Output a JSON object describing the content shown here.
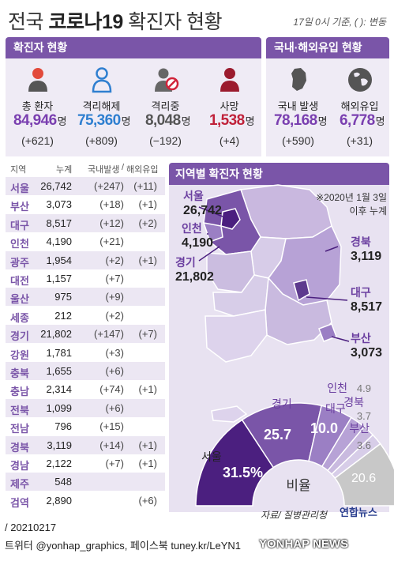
{
  "header": {
    "title_pre": "전국 ",
    "title_bold": "코로나19",
    "title_post": " 확진자 현황",
    "basis": "17일 0시 기준, ( ): 변동"
  },
  "sections": {
    "cases": "확진자 현황",
    "origin": "국내·해외유입 현황",
    "map": "지역별 확진자 현황"
  },
  "stats": [
    {
      "label": "총 환자",
      "value": "84,946",
      "unit": "명",
      "change": "(+621)",
      "color": "#7a3fb0",
      "icon": "person-icon"
    },
    {
      "label": "격리해제",
      "value": "75,360",
      "unit": "명",
      "change": "(+809)",
      "color": "#2f7fd0",
      "icon": "released-person-icon"
    },
    {
      "label": "격리중",
      "value": "8,048",
      "unit": "명",
      "change": "(−192)",
      "color": "#555555",
      "icon": "isolated-person-icon"
    },
    {
      "label": "사망",
      "value": "1,538",
      "unit": "명",
      "change": "(+4)",
      "color": "#c0223a",
      "icon": "deceased-person-icon"
    }
  ],
  "origin_stats": [
    {
      "label": "국내 발생",
      "value": "78,168",
      "unit": "명",
      "change": "(+590)",
      "color": "#7a3fb0",
      "icon": "korea-map-icon"
    },
    {
      "label": "해외유입",
      "value": "6,778",
      "unit": "명",
      "change": "(+31)",
      "color": "#7a3fb0",
      "icon": "globe-icon"
    }
  ],
  "table": {
    "headers": [
      "지역",
      "누계",
      "국내발생",
      "해외유입"
    ],
    "header_sep": "/",
    "rows": [
      {
        "region": "서울",
        "total": "26,742",
        "domestic": "(+247)",
        "overseas": "(+11)"
      },
      {
        "region": "부산",
        "total": "3,073",
        "domestic": "(+18)",
        "overseas": "(+1)"
      },
      {
        "region": "대구",
        "total": "8,517",
        "domestic": "(+12)",
        "overseas": "(+2)"
      },
      {
        "region": "인천",
        "total": "4,190",
        "domestic": "(+21)",
        "overseas": ""
      },
      {
        "region": "광주",
        "total": "1,954",
        "domestic": "(+2)",
        "overseas": "(+1)"
      },
      {
        "region": "대전",
        "total": "1,157",
        "domestic": "(+7)",
        "overseas": ""
      },
      {
        "region": "울산",
        "total": "975",
        "domestic": "(+9)",
        "overseas": ""
      },
      {
        "region": "세종",
        "total": "212",
        "domestic": "(+2)",
        "overseas": ""
      },
      {
        "region": "경기",
        "total": "21,802",
        "domestic": "(+147)",
        "overseas": "(+7)"
      },
      {
        "region": "강원",
        "total": "1,781",
        "domestic": "(+3)",
        "overseas": ""
      },
      {
        "region": "충북",
        "total": "1,655",
        "domestic": "(+6)",
        "overseas": ""
      },
      {
        "region": "충남",
        "total": "2,314",
        "domestic": "(+74)",
        "overseas": "(+1)"
      },
      {
        "region": "전북",
        "total": "1,099",
        "domestic": "(+6)",
        "overseas": ""
      },
      {
        "region": "전남",
        "total": "796",
        "domestic": "(+15)",
        "overseas": ""
      },
      {
        "region": "경북",
        "total": "3,119",
        "domestic": "(+14)",
        "overseas": "(+1)"
      },
      {
        "region": "경남",
        "total": "2,122",
        "domestic": "(+7)",
        "overseas": "(+1)"
      },
      {
        "region": "제주",
        "total": "548",
        "domestic": "",
        "overseas": ""
      },
      {
        "region": "검역",
        "total": "2,890",
        "domestic": "",
        "overseas": "(+6)"
      }
    ]
  },
  "map": {
    "note_line1": "※2020년 1월 3일",
    "note_line2": "이후 누계",
    "labels": {
      "seoul": {
        "name": "서울",
        "value": "26,742"
      },
      "incheon": {
        "name": "인천",
        "value": "4,190"
      },
      "gyeonggi": {
        "name": "경기",
        "value": "21,802"
      },
      "gyeongbuk": {
        "name": "경북",
        "value": "3,119"
      },
      "daegu": {
        "name": "대구",
        "value": "8,517"
      },
      "busan": {
        "name": "부산",
        "value": "3,073"
      }
    }
  },
  "chart_data": {
    "type": "pie",
    "style": "half-donut",
    "center_label": "비율",
    "unit": "%",
    "slices": [
      {
        "name": "서울",
        "value": 31.5,
        "label": "31.5%",
        "color": "#4b1f7f"
      },
      {
        "name": "경기",
        "value": 25.7,
        "label": "25.7",
        "color": "#7a55a8"
      },
      {
        "name": "대구",
        "value": 10.0,
        "label": "10.0",
        "color": "#9b7fc4"
      },
      {
        "name": "인천",
        "value": 4.9,
        "label": "4.9",
        "color": "#b7a2d6"
      },
      {
        "name": "경북",
        "value": 3.7,
        "label": "3.7",
        "color": "#c9badf"
      },
      {
        "name": "부산",
        "value": 3.6,
        "label": "3.6",
        "color": "#d7cde8"
      },
      {
        "name": "",
        "value": 20.6,
        "label": "20.6",
        "color": "#c8c8c8"
      }
    ]
  },
  "footer": {
    "source": "자료/ 질병관리청",
    "logo": "연합뉴스",
    "date": "/ 20210217",
    "social": "트위터 @yonhap_graphics, 페이스북 tuney.kr/LeYN1",
    "watermark": "YONHAP NEWS"
  }
}
